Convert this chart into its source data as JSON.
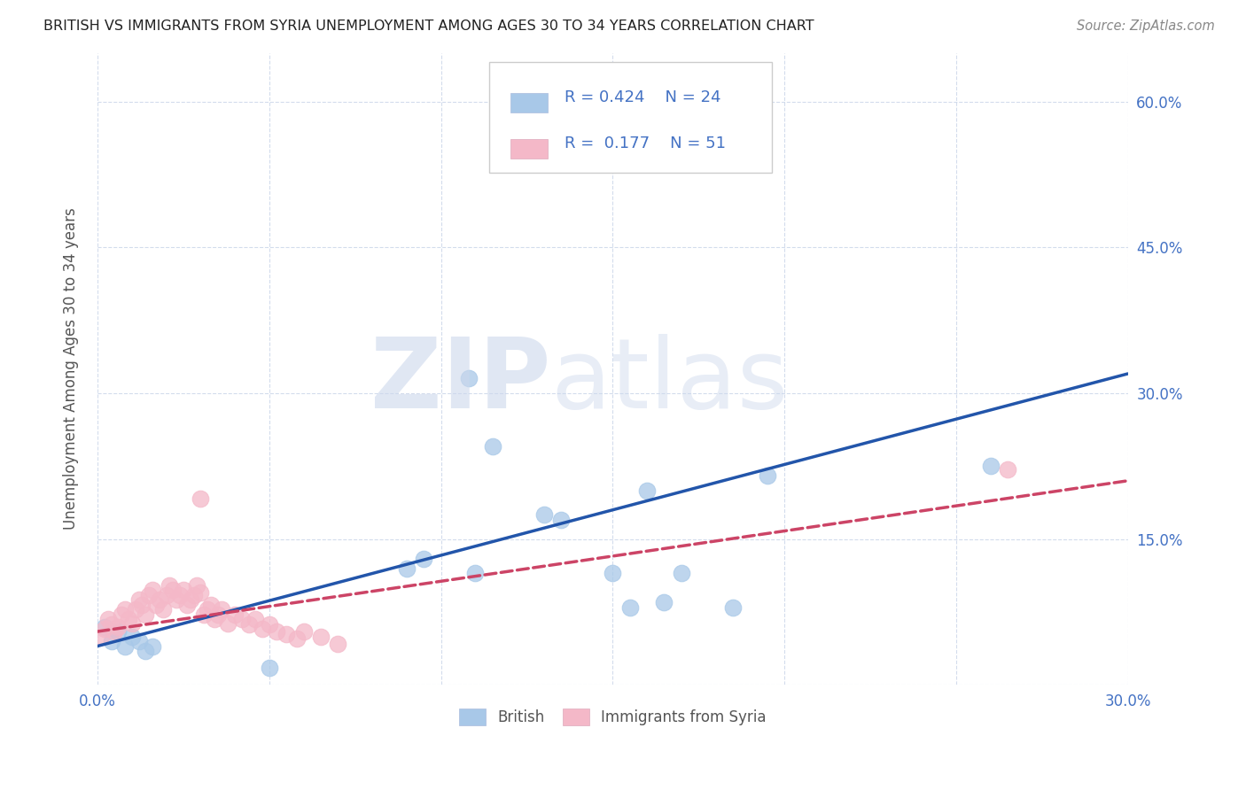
{
  "title": "BRITISH VS IMMIGRANTS FROM SYRIA UNEMPLOYMENT AMONG AGES 30 TO 34 YEARS CORRELATION CHART",
  "source": "Source: ZipAtlas.com",
  "ylabel": "Unemployment Among Ages 30 to 34 years",
  "xlim": [
    0.0,
    0.3
  ],
  "ylim": [
    0.0,
    0.65
  ],
  "british_color": "#a8c8e8",
  "british_line_color": "#2255aa",
  "syria_color": "#f4b8c8",
  "syria_line_color": "#cc4466",
  "british_R": 0.424,
  "british_N": 24,
  "syria_R": 0.177,
  "syria_N": 51,
  "british_x": [
    0.002,
    0.004,
    0.006,
    0.008,
    0.01,
    0.012,
    0.014,
    0.016,
    0.05,
    0.09,
    0.095,
    0.11,
    0.115,
    0.13,
    0.155,
    0.16,
    0.165,
    0.195,
    0.135,
    0.15,
    0.108,
    0.26,
    0.17,
    0.185
  ],
  "british_y": [
    0.06,
    0.045,
    0.055,
    0.04,
    0.05,
    0.045,
    0.035,
    0.04,
    0.018,
    0.12,
    0.13,
    0.115,
    0.245,
    0.175,
    0.08,
    0.2,
    0.085,
    0.215,
    0.17,
    0.115,
    0.315,
    0.225,
    0.115,
    0.08
  ],
  "syria_x": [
    0.001,
    0.002,
    0.003,
    0.004,
    0.005,
    0.006,
    0.007,
    0.008,
    0.009,
    0.01,
    0.011,
    0.012,
    0.013,
    0.014,
    0.015,
    0.016,
    0.017,
    0.018,
    0.019,
    0.02,
    0.021,
    0.022,
    0.023,
    0.024,
    0.025,
    0.026,
    0.027,
    0.028,
    0.029,
    0.03,
    0.031,
    0.032,
    0.033,
    0.034,
    0.035,
    0.036,
    0.038,
    0.04,
    0.042,
    0.044,
    0.046,
    0.048,
    0.05,
    0.052,
    0.055,
    0.058,
    0.06,
    0.065,
    0.07,
    0.03,
    0.265
  ],
  "syria_y": [
    0.05,
    0.058,
    0.068,
    0.062,
    0.055,
    0.06,
    0.072,
    0.078,
    0.068,
    0.063,
    0.078,
    0.088,
    0.082,
    0.072,
    0.092,
    0.098,
    0.082,
    0.088,
    0.078,
    0.092,
    0.102,
    0.098,
    0.088,
    0.092,
    0.098,
    0.082,
    0.088,
    0.092,
    0.102,
    0.095,
    0.072,
    0.078,
    0.082,
    0.068,
    0.072,
    0.078,
    0.063,
    0.072,
    0.068,
    0.062,
    0.068,
    0.058,
    0.062,
    0.055,
    0.052,
    0.048,
    0.055,
    0.05,
    0.042,
    0.192,
    0.222
  ],
  "british_trend": [
    0.0,
    0.3,
    0.04,
    0.32
  ],
  "syria_trend": [
    0.0,
    0.3,
    0.055,
    0.21
  ]
}
